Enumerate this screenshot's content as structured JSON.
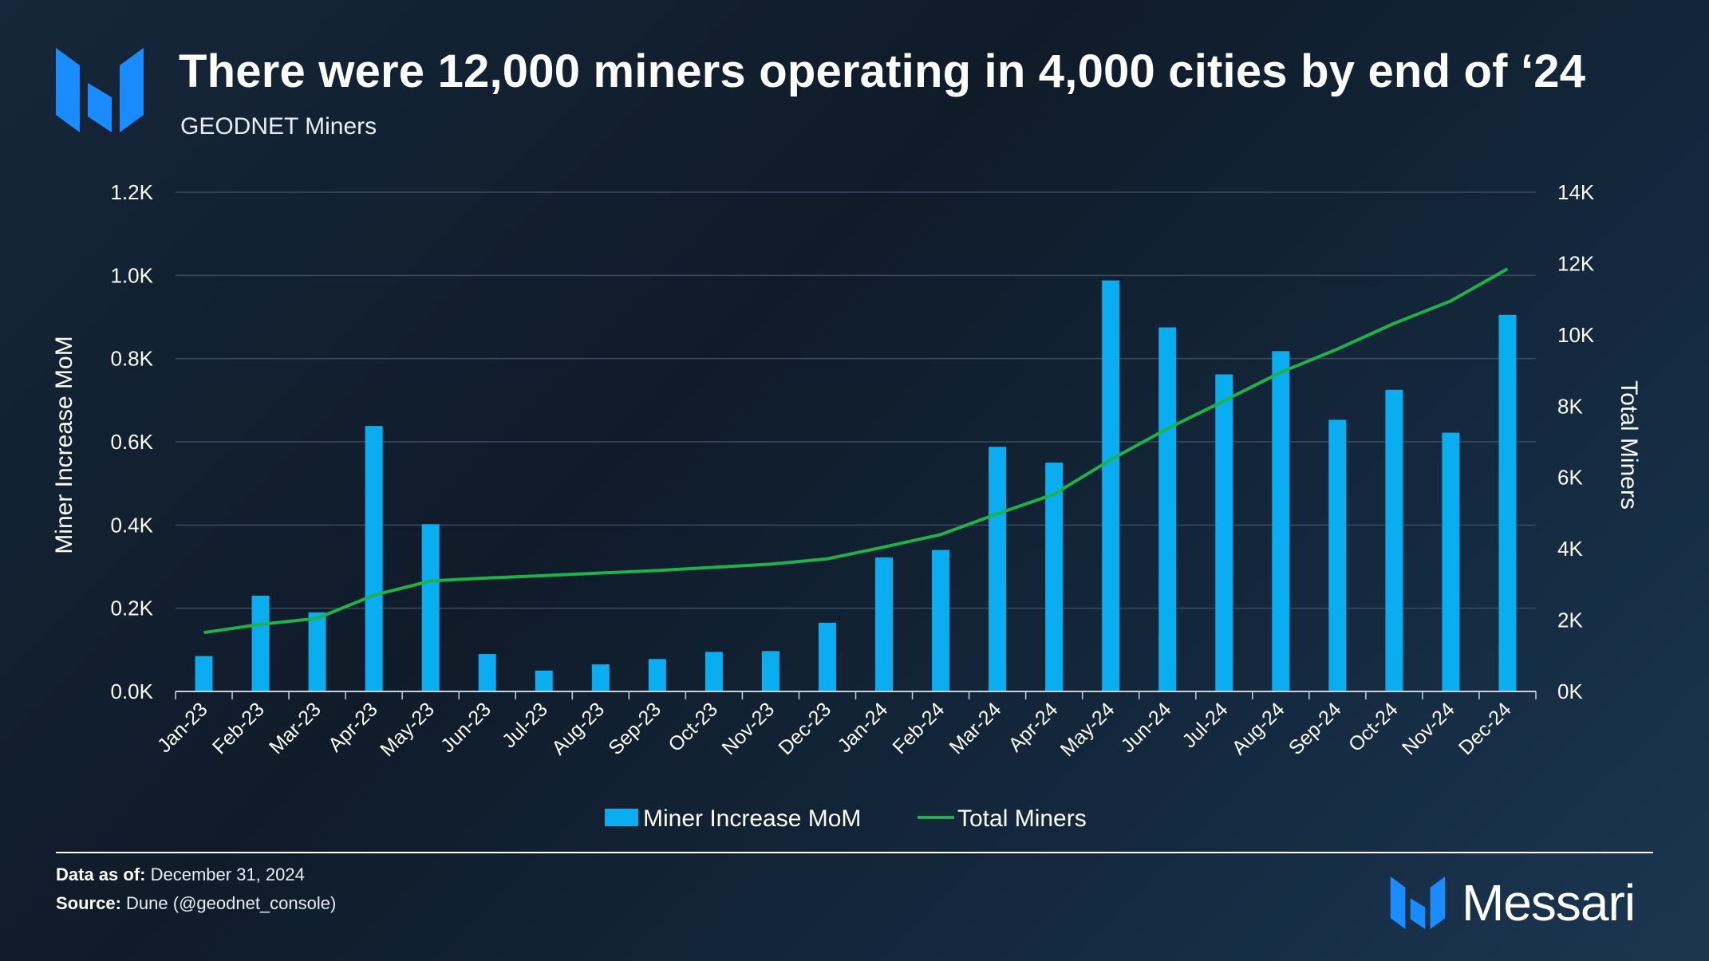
{
  "header": {
    "title": "There were 12,000 miners operating in 4,000 cities by end of ‘24",
    "subtitle": "GEODNET Miners"
  },
  "footer": {
    "data_as_of_label": "Data as of:",
    "data_as_of_value": "December 31, 2024",
    "source_label": "Source:",
    "source_value": "Dune (@geodnet_console)",
    "brand": "Messari"
  },
  "colors": {
    "bar": "#0aaef0",
    "line": "#1fb24a",
    "brand_blue": "#1a8cff",
    "grid": "#3b4b5e"
  },
  "chart_data": {
    "type": "bar",
    "categories": [
      "Jan-23",
      "Feb-23",
      "Mar-23",
      "Apr-23",
      "May-23",
      "Jun-23",
      "Jul-23",
      "Aug-23",
      "Sep-23",
      "Oct-23",
      "Nov-23",
      "Dec-23",
      "Jan-24",
      "Feb-24",
      "Mar-24",
      "Apr-24",
      "May-24",
      "Jun-24",
      "Jul-24",
      "Aug-24",
      "Sep-24",
      "Oct-24",
      "Nov-24",
      "Dec-24"
    ],
    "series": [
      {
        "name": "Miner Increase MoM",
        "type": "bar",
        "axis": "left",
        "values": [
          85,
          230,
          190,
          638,
          402,
          90,
          50,
          65,
          78,
          95,
          97,
          165,
          322,
          340,
          588,
          550,
          988,
          875,
          762,
          818,
          653,
          725,
          622,
          905
        ]
      },
      {
        "name": "Total Miners",
        "type": "line",
        "axis": "right",
        "values": [
          1650,
          1880,
          2050,
          2700,
          3100,
          3180,
          3250,
          3320,
          3390,
          3480,
          3570,
          3720,
          4050,
          4400,
          4980,
          5530,
          6500,
          7370,
          8150,
          8950,
          9600,
          10320,
          10950,
          11850
        ]
      }
    ],
    "y_left": {
      "label": "Miner Increase MoM",
      "ylim": [
        0,
        1200
      ],
      "ticks": [
        "0.0K",
        "0.2K",
        "0.4K",
        "0.6K",
        "0.8K",
        "1.0K",
        "1.2K"
      ]
    },
    "y_right": {
      "label": "Total Miners",
      "ylim": [
        0,
        14000
      ],
      "ticks": [
        "0K",
        "2K",
        "4K",
        "6K",
        "8K",
        "10K",
        "12K",
        "14K"
      ]
    },
    "grid": true,
    "legend_position": "bottom-center"
  }
}
